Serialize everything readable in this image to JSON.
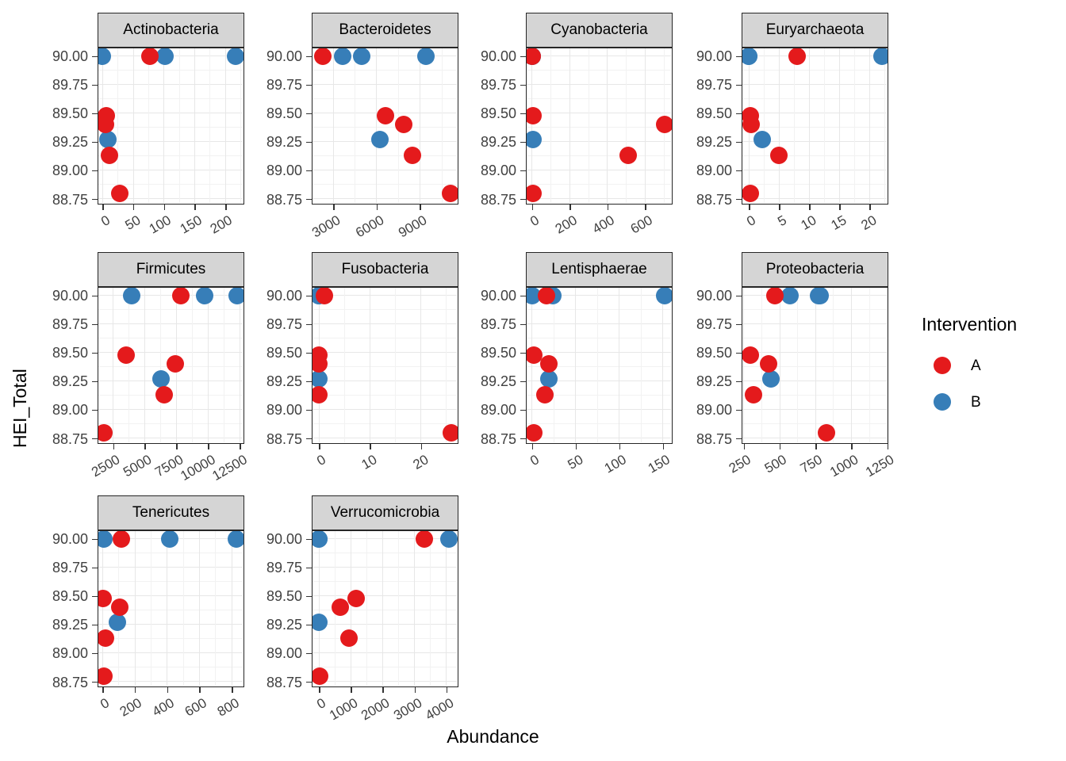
{
  "figure": {
    "x_axis_title": "Abundance",
    "y_axis_title": "HEI_Total"
  },
  "legend": {
    "title": "Intervention",
    "items": [
      {
        "label": "A",
        "color": "#E41A1C"
      },
      {
        "label": "B",
        "color": "#377EB8"
      }
    ]
  },
  "chart_data": {
    "type": "scatter",
    "title": "",
    "xlabel": "Abundance",
    "ylabel": "HEI_Total",
    "legend_title": "Intervention",
    "groups": {
      "A": "#E41A1C",
      "B": "#377EB8"
    },
    "y_ticks": [
      90.0,
      89.75,
      89.5,
      89.25,
      89.0,
      88.75
    ],
    "y_domain": [
      88.716,
      90.068
    ],
    "facets": [
      {
        "name": "Actinobacteria",
        "x_ticks": [
          0,
          50,
          100,
          150,
          200
        ],
        "x_domain": [
          -7,
          228
        ],
        "points": [
          {
            "x": 0,
            "y": 90.0,
            "g": "B"
          },
          {
            "x": 101,
            "y": 90.0,
            "g": "B"
          },
          {
            "x": 217,
            "y": 90.0,
            "g": "B"
          },
          {
            "x": 9,
            "y": 89.27,
            "g": "B"
          },
          {
            "x": 77,
            "y": 90.0,
            "g": "A"
          },
          {
            "x": 6,
            "y": 89.48,
            "g": "A"
          },
          {
            "x": 4,
            "y": 89.4,
            "g": "A"
          },
          {
            "x": 11,
            "y": 89.13,
            "g": "A"
          },
          {
            "x": 28,
            "y": 88.8,
            "g": "A"
          }
        ]
      },
      {
        "name": "Bacteroidetes",
        "x_ticks": [
          3000,
          6000,
          9000
        ],
        "x_domain": [
          1560,
          11530
        ],
        "points": [
          {
            "x": 3630,
            "y": 90.0,
            "g": "B"
          },
          {
            "x": 4980,
            "y": 90.0,
            "g": "B"
          },
          {
            "x": 9400,
            "y": 90.0,
            "g": "B"
          },
          {
            "x": 6230,
            "y": 89.27,
            "g": "B"
          },
          {
            "x": 2280,
            "y": 90.0,
            "g": "A"
          },
          {
            "x": 6630,
            "y": 89.48,
            "g": "A"
          },
          {
            "x": 7850,
            "y": 89.4,
            "g": "A"
          },
          {
            "x": 8480,
            "y": 89.13,
            "g": "A"
          },
          {
            "x": 11090,
            "y": 88.8,
            "g": "A"
          }
        ]
      },
      {
        "name": "Cyanobacteria",
        "x_ticks": [
          0,
          200,
          400,
          600
        ],
        "x_domain": [
          -29,
          737
        ],
        "points": [
          {
            "x": 0,
            "y": 90.0,
            "g": "B"
          },
          {
            "x": 0,
            "y": 90.0,
            "g": "B"
          },
          {
            "x": 0,
            "y": 90.0,
            "g": "B"
          },
          {
            "x": 3,
            "y": 89.27,
            "g": "B"
          },
          {
            "x": 0,
            "y": 90.0,
            "g": "A"
          },
          {
            "x": 3,
            "y": 89.48,
            "g": "A"
          },
          {
            "x": 704,
            "y": 89.4,
            "g": "A"
          },
          {
            "x": 509,
            "y": 89.13,
            "g": "A"
          },
          {
            "x": 3,
            "y": 88.8,
            "g": "A"
          }
        ]
      },
      {
        "name": "Euryarchaeota",
        "x_ticks": [
          0,
          5,
          10,
          15,
          20
        ],
        "x_domain": [
          -1.1,
          22.8
        ],
        "points": [
          {
            "x": 0,
            "y": 90.0,
            "g": "B"
          },
          {
            "x": 0,
            "y": 90.0,
            "g": "B"
          },
          {
            "x": 22,
            "y": 90.0,
            "g": "B"
          },
          {
            "x": 2.2,
            "y": 89.27,
            "g": "B"
          },
          {
            "x": 8,
            "y": 90.0,
            "g": "A"
          },
          {
            "x": 0.2,
            "y": 89.48,
            "g": "A"
          },
          {
            "x": 0.3,
            "y": 89.4,
            "g": "A"
          },
          {
            "x": 5,
            "y": 89.13,
            "g": "A"
          },
          {
            "x": 0.2,
            "y": 88.8,
            "g": "A"
          }
        ]
      },
      {
        "name": "Firmicutes",
        "x_ticks": [
          2500,
          5000,
          7500,
          10000,
          12500
        ],
        "x_domain": [
          1330,
          12700
        ],
        "points": [
          {
            "x": 3950,
            "y": 90.0,
            "g": "B"
          },
          {
            "x": 9690,
            "y": 90.0,
            "g": "B"
          },
          {
            "x": 12290,
            "y": 90.0,
            "g": "B"
          },
          {
            "x": 6250,
            "y": 89.27,
            "g": "B"
          },
          {
            "x": 7810,
            "y": 90.0,
            "g": "A"
          },
          {
            "x": 3540,
            "y": 89.48,
            "g": "A"
          },
          {
            "x": 7395,
            "y": 89.4,
            "g": "A"
          },
          {
            "x": 6500,
            "y": 89.13,
            "g": "A"
          },
          {
            "x": 1770,
            "y": 88.8,
            "g": "A"
          }
        ]
      },
      {
        "name": "Fusobacteria",
        "x_ticks": [
          0,
          10,
          20
        ],
        "x_domain": [
          -1.3,
          27
        ],
        "points": [
          {
            "x": 0,
            "y": 90.0,
            "g": "B"
          },
          {
            "x": 0,
            "y": 90.0,
            "g": "B"
          },
          {
            "x": 0,
            "y": 90.0,
            "g": "B"
          },
          {
            "x": 0,
            "y": 89.27,
            "g": "B"
          },
          {
            "x": 1,
            "y": 90.0,
            "g": "A"
          },
          {
            "x": 0,
            "y": 89.48,
            "g": "A"
          },
          {
            "x": 0,
            "y": 89.4,
            "g": "A"
          },
          {
            "x": 0,
            "y": 89.13,
            "g": "A"
          },
          {
            "x": 26,
            "y": 88.8,
            "g": "A"
          }
        ]
      },
      {
        "name": "Lentisphaerae",
        "x_ticks": [
          0,
          50,
          100,
          150
        ],
        "x_domain": [
          -6.3,
          159
        ],
        "points": [
          {
            "x": 0,
            "y": 90.0,
            "g": "B"
          },
          {
            "x": 24,
            "y": 90.0,
            "g": "B"
          },
          {
            "x": 152,
            "y": 90.0,
            "g": "B"
          },
          {
            "x": 19,
            "y": 89.27,
            "g": "B"
          },
          {
            "x": 16,
            "y": 90.0,
            "g": "A"
          },
          {
            "x": 1.5,
            "y": 89.48,
            "g": "A"
          },
          {
            "x": 19,
            "y": 89.4,
            "g": "A"
          },
          {
            "x": 15,
            "y": 89.13,
            "g": "A"
          },
          {
            "x": 1.5,
            "y": 88.8,
            "g": "A"
          }
        ]
      },
      {
        "name": "Proteobacteria",
        "x_ticks": [
          250,
          500,
          750,
          1000,
          1250
        ],
        "x_domain": [
          240,
          1245
        ],
        "points": [
          {
            "x": 574,
            "y": 90.0,
            "g": "B"
          },
          {
            "x": 770,
            "y": 90.0,
            "g": "B"
          },
          {
            "x": 779,
            "y": 90.0,
            "g": "B"
          },
          {
            "x": 438,
            "y": 89.27,
            "g": "B"
          },
          {
            "x": 466,
            "y": 90.0,
            "g": "A"
          },
          {
            "x": 293,
            "y": 89.48,
            "g": "A"
          },
          {
            "x": 420,
            "y": 89.4,
            "g": "A"
          },
          {
            "x": 317,
            "y": 89.13,
            "g": "A"
          },
          {
            "x": 827,
            "y": 88.8,
            "g": "A"
          }
        ]
      },
      {
        "name": "Tenericutes",
        "x_ticks": [
          0,
          200,
          400,
          600,
          800
        ],
        "x_domain": [
          -26,
          866
        ],
        "points": [
          {
            "x": 8,
            "y": 90.0,
            "g": "B"
          },
          {
            "x": 416,
            "y": 90.0,
            "g": "B"
          },
          {
            "x": 830,
            "y": 90.0,
            "g": "B"
          },
          {
            "x": 90,
            "y": 89.27,
            "g": "B"
          },
          {
            "x": 114,
            "y": 90.0,
            "g": "A"
          },
          {
            "x": 5,
            "y": 89.48,
            "g": "A"
          },
          {
            "x": 106,
            "y": 89.4,
            "g": "A"
          },
          {
            "x": 17,
            "y": 89.13,
            "g": "A"
          },
          {
            "x": 8,
            "y": 88.8,
            "g": "A"
          }
        ]
      },
      {
        "name": "Verrucomicrobia",
        "x_ticks": [
          0,
          1000,
          2000,
          3000,
          4000
        ],
        "x_domain": [
          -206,
          4320
        ],
        "points": [
          {
            "x": 0,
            "y": 90.0,
            "g": "B"
          },
          {
            "x": 0,
            "y": 90.0,
            "g": "B"
          },
          {
            "x": 4080,
            "y": 90.0,
            "g": "B"
          },
          {
            "x": 0,
            "y": 89.27,
            "g": "B"
          },
          {
            "x": 3310,
            "y": 90.0,
            "g": "A"
          },
          {
            "x": 1165,
            "y": 89.48,
            "g": "A"
          },
          {
            "x": 675,
            "y": 89.4,
            "g": "A"
          },
          {
            "x": 940,
            "y": 89.13,
            "g": "A"
          },
          {
            "x": 25,
            "y": 88.8,
            "g": "A"
          }
        ]
      }
    ]
  }
}
